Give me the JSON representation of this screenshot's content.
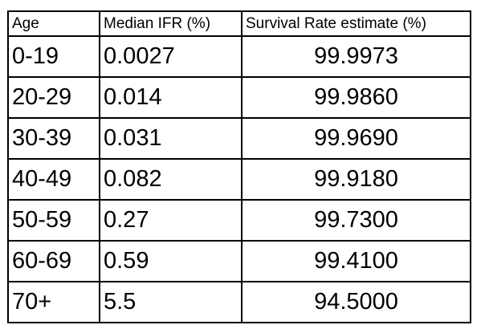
{
  "chart_data": {
    "type": "table",
    "columns": [
      "Age",
      "Median IFR (%)",
      "Survival Rate estimate (%)"
    ],
    "rows": [
      [
        "0-19",
        "0.0027",
        "99.9973"
      ],
      [
        "20-29",
        "0.014",
        "99.9860"
      ],
      [
        "30-39",
        "0.031",
        "99.9690"
      ],
      [
        "40-49",
        "0.082",
        "99.9180"
      ],
      [
        "50-59",
        "0.27",
        "99.7300"
      ],
      [
        "60-69",
        "0.59",
        "99.4100"
      ],
      [
        "70+",
        "5.5",
        "94.5000"
      ]
    ]
  }
}
